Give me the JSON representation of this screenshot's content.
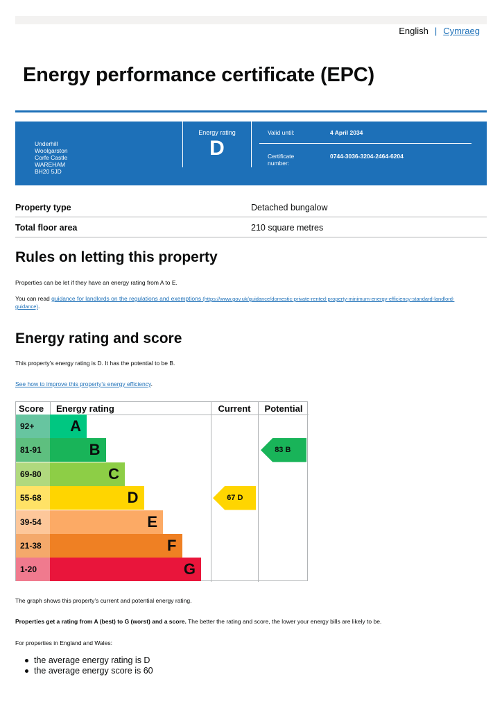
{
  "language": {
    "current": "English",
    "separator": "|",
    "other": "Cymraeg"
  },
  "title": "Energy performance certificate (EPC)",
  "summary": {
    "address": [
      "Underhill",
      "Woolgarston",
      "Corfe Castle",
      "WAREHAM",
      "BH20 5JD"
    ],
    "rating_label": "Energy rating",
    "rating": "D",
    "valid_until_label": "Valid until:",
    "valid_until": "4 April 2034",
    "certificate_label_line1": "Certificate",
    "certificate_label_line2": "number:",
    "certificate_number": "0744-3036-3204-2464-6204"
  },
  "property": [
    {
      "key": "Property type",
      "value": "Detached bungalow"
    },
    {
      "key": "Total floor area",
      "value": "210 square metres"
    }
  ],
  "letting": {
    "heading": "Rules on letting this property",
    "para1": "Properties can be let if they have an energy rating from A to E.",
    "para2_prefix": "You can read ",
    "para2_link": "guidance for landlords on the regulations and exemptions",
    "para2_url_line1": " (https://www.gov.uk/guidance/domestic-private-rented-property-minimum-energy-efficiency-standard-landlord-",
    "para2_url_line2": "guidance)",
    "para2_suffix": "."
  },
  "rating_section": {
    "heading": "Energy rating and score",
    "para1": "This property’s energy rating is D. It has the potential to be B.",
    "improve_link": "See how to improve this property’s energy efficiency",
    "improve_suffix": "."
  },
  "chart_data": {
    "type": "table",
    "headers": {
      "score": "Score",
      "rating": "Energy rating",
      "current": "Current",
      "potential": "Potential"
    },
    "bands": [
      {
        "score": "92+",
        "letter": "A",
        "color": "#00c781",
        "score_color": "#67c5a0",
        "text_color": "#0b0c0c"
      },
      {
        "score": "81-91",
        "letter": "B",
        "color": "#19b459",
        "score_color": "#5ebf7f",
        "text_color": "#0b0c0c"
      },
      {
        "score": "69-80",
        "letter": "C",
        "color": "#8dce46",
        "score_color": "#b0d97e",
        "text_color": "#0b0c0c"
      },
      {
        "score": "55-68",
        "letter": "D",
        "color": "#ffd500",
        "score_color": "#ffe266",
        "text_color": "#0b0c0c"
      },
      {
        "score": "39-54",
        "letter": "E",
        "color": "#fcaa65",
        "score_color": "#fdc79a",
        "text_color": "#0b0c0c"
      },
      {
        "score": "21-38",
        "letter": "F",
        "color": "#ef8023",
        "score_color": "#f4a96b",
        "text_color": "#0b0c0c"
      },
      {
        "score": "1-20",
        "letter": "G",
        "color": "#e9153b",
        "score_color": "#f07a8e",
        "text_color": "#0b0c0c"
      }
    ],
    "current": {
      "score": 67,
      "letter": "D",
      "color": "#ffd500"
    },
    "potential": {
      "score": 83,
      "letter": "B",
      "color": "#19b459"
    }
  },
  "after_chart": {
    "para1": "The graph shows this property’s current and potential energy rating.",
    "para2_bold": "Properties get a rating from A (best) to G (worst) and a score.",
    "para2_rest": " The better the rating and score, the lower your energy bills are likely to be.",
    "para3": "For properties in England and Wales:",
    "bullets": [
      "the average energy rating is D",
      "the average energy score is 60"
    ]
  }
}
